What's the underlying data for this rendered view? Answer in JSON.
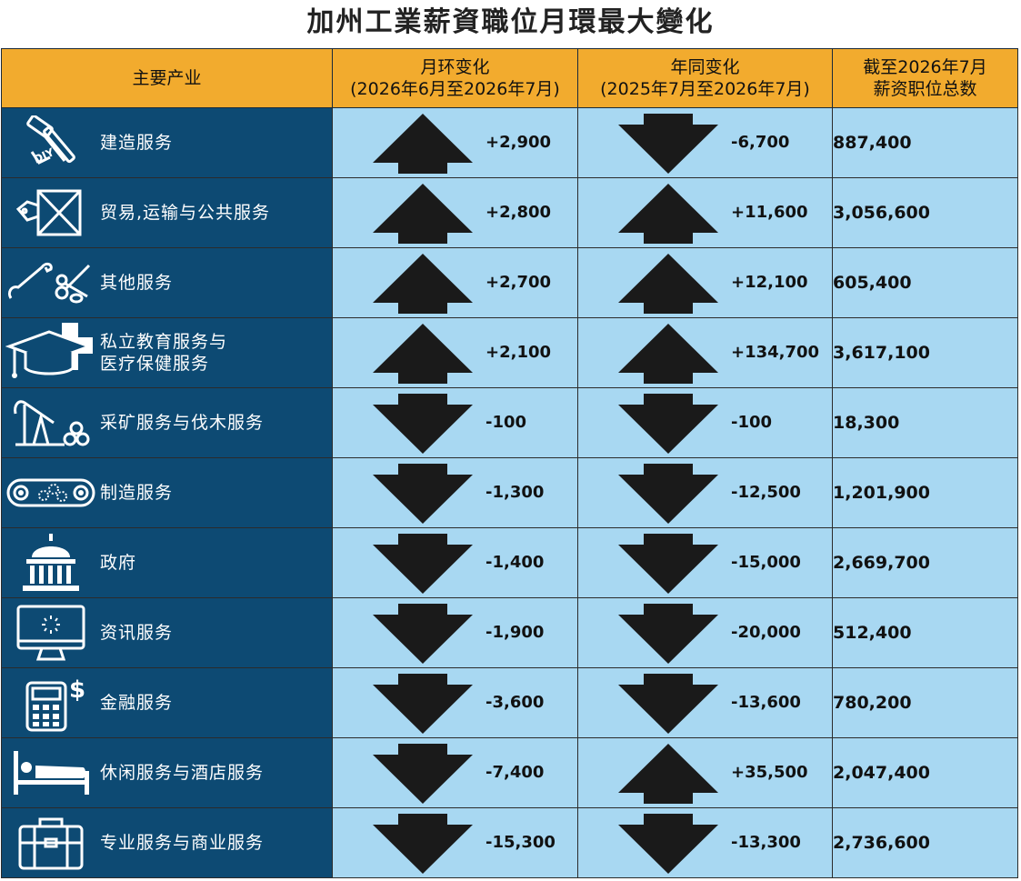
{
  "title": "加州工業薪資職位月環最大變化",
  "headers": {
    "industry": "主要产业",
    "mom_line1": "月环变化",
    "mom_line2": "(2026年6月至2026年7月)",
    "yoy_line1": "年同变化",
    "yoy_line2": "(2025年7月至2026年7月)",
    "total_line1": "截至2026年7月",
    "total_line2": "薪资职位总数"
  },
  "colors": {
    "header_bg": "#f2ab2e",
    "industry_bg": "#0d4a73",
    "value_bg": "#a8d8f2",
    "arrow": "#1a1a1a"
  },
  "rows": [
    {
      "icon": "construction-tools-icon",
      "name_line1": "建造服务",
      "name_line2": "",
      "mom": "+2,900",
      "mom_dir": "up",
      "yoy": "-6,700",
      "yoy_dir": "down",
      "total": "887,400"
    },
    {
      "icon": "shipping-crate-icon",
      "name_line1": "贸易,运输与公共服务",
      "name_line2": "",
      "mom": "+2,800",
      "mom_dir": "up",
      "yoy": "+11,600",
      "yoy_dir": "up",
      "total": "3,056,600"
    },
    {
      "icon": "wrench-scissors-icon",
      "name_line1": "其他服务",
      "name_line2": "",
      "mom": "+2,700",
      "mom_dir": "up",
      "yoy": "+12,100",
      "yoy_dir": "up",
      "total": "605,400"
    },
    {
      "icon": "graduation-medical-icon",
      "name_line1": "私立教育服务与",
      "name_line2": "医疗保健服务",
      "mom": "+2,100",
      "mom_dir": "up",
      "yoy": "+134,700",
      "yoy_dir": "up",
      "total": "3,617,100"
    },
    {
      "icon": "oil-pump-logs-icon",
      "name_line1": "采矿服务与伐木服务",
      "name_line2": "",
      "mom": "-100",
      "mom_dir": "down",
      "yoy": "-100",
      "yoy_dir": "down",
      "total": "18,300"
    },
    {
      "icon": "conveyor-gears-icon",
      "name_line1": "制造服务",
      "name_line2": "",
      "mom": "-1,300",
      "mom_dir": "down",
      "yoy": "-12,500",
      "yoy_dir": "down",
      "total": "1,201,900"
    },
    {
      "icon": "capitol-building-icon",
      "name_line1": "政府",
      "name_line2": "",
      "mom": "-1,400",
      "mom_dir": "down",
      "yoy": "-15,000",
      "yoy_dir": "down",
      "total": "2,669,700"
    },
    {
      "icon": "computer-monitor-icon",
      "name_line1": "资讯服务",
      "name_line2": "",
      "mom": "-1,900",
      "mom_dir": "down",
      "yoy": "-20,000",
      "yoy_dir": "down",
      "total": "512,400"
    },
    {
      "icon": "calculator-dollar-icon",
      "name_line1": "金融服务",
      "name_line2": "",
      "mom": "-3,600",
      "mom_dir": "down",
      "yoy": "-13,600",
      "yoy_dir": "down",
      "total": "780,200"
    },
    {
      "icon": "hotel-bed-icon",
      "name_line1": "休闲服务与酒店服务",
      "name_line2": "",
      "mom": "-7,400",
      "mom_dir": "down",
      "yoy": "+35,500",
      "yoy_dir": "up",
      "total": "2,047,400"
    },
    {
      "icon": "briefcase-icon",
      "name_line1": "专业服务与商业服务",
      "name_line2": "",
      "mom": "-15,300",
      "mom_dir": "down",
      "yoy": "-13,300",
      "yoy_dir": "down",
      "total": "2,736,600"
    }
  ],
  "chart_data": {
    "type": "table",
    "title": "加州工業薪資職位月環最大變化",
    "columns": [
      "主要产业",
      "月环变化 (2026年6月至2026年7月)",
      "年同变化 (2025年7月至2026年7月)",
      "截至2026年7月 薪资职位总数"
    ],
    "categories": [
      "建造服务",
      "贸易,运输与公共服务",
      "其他服务",
      "私立教育服务与医疗保健服务",
      "采矿服务与伐木服务",
      "制造服务",
      "政府",
      "资讯服务",
      "金融服务",
      "休闲服务与酒店服务",
      "专业服务与商业服务"
    ],
    "series": [
      {
        "name": "月环变化",
        "values": [
          2900,
          2800,
          2700,
          2100,
          -100,
          -1300,
          -1400,
          -1900,
          -3600,
          -7400,
          -15300
        ]
      },
      {
        "name": "年同变化",
        "values": [
          -6700,
          11600,
          12100,
          134700,
          -100,
          -12500,
          -15000,
          -20000,
          -13600,
          35500,
          -13300
        ]
      },
      {
        "name": "薪资职位总数",
        "values": [
          887400,
          3056600,
          605400,
          3617100,
          18300,
          1201900,
          2669700,
          512400,
          780200,
          2047400,
          2736600
        ]
      }
    ]
  }
}
